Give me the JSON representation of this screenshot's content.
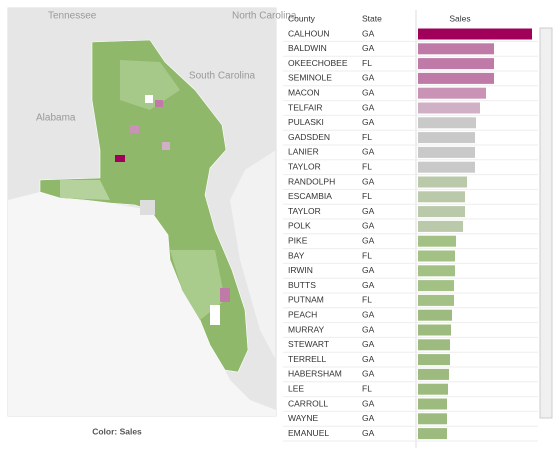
{
  "map": {
    "labels": [
      "Tennessee",
      "North Carolina",
      "South Carolina",
      "Alabama"
    ],
    "legend_caption": "Color: Sales"
  },
  "chart_data": {
    "type": "bar",
    "orientation": "horizontal",
    "columns": [
      "County",
      "State",
      "Sales"
    ],
    "categories": [
      "CALHOUN",
      "BALDWIN",
      "OKEECHOBEE",
      "SEMINOLE",
      "MACON",
      "TELFAIR",
      "PULASKI",
      "GADSDEN",
      "LANIER",
      "TAYLOR",
      "RANDOLPH",
      "ESCAMBIA",
      "TAYLOR",
      "POLK",
      "PIKE",
      "BAY",
      "IRWIN",
      "BUTTS",
      "PUTNAM",
      "PEACH",
      "MURRAY",
      "STEWART",
      "TERRELL",
      "HABERSHAM",
      "LEE",
      "CARROLL",
      "WAYNE",
      "EMANUEL"
    ],
    "states": [
      "GA",
      "GA",
      "FL",
      "GA",
      "GA",
      "GA",
      "GA",
      "FL",
      "GA",
      "FL",
      "GA",
      "FL",
      "GA",
      "GA",
      "GA",
      "FL",
      "GA",
      "GA",
      "FL",
      "GA",
      "GA",
      "GA",
      "GA",
      "GA",
      "FL",
      "GA",
      "GA",
      "GA"
    ],
    "values": [
      114,
      76,
      76,
      76,
      68,
      62,
      58,
      57,
      57,
      57,
      49,
      47,
      47,
      45,
      38,
      37,
      37,
      36,
      36,
      34,
      33,
      32,
      32,
      31,
      30,
      29,
      29,
      29
    ],
    "colors": [
      "#a0005a",
      "#c07aa8",
      "#c07aa8",
      "#c07aa8",
      "#c993b6",
      "#cfb0c4",
      "#c9c9c9",
      "#c9c9c9",
      "#c9c9c9",
      "#c9c9c9",
      "#b9c9a9",
      "#b9c9a9",
      "#b9c9a9",
      "#b9c9a9",
      "#a3c184",
      "#a3c184",
      "#a3c184",
      "#a3c184",
      "#a3c184",
      "#9dbb7e",
      "#9dbb7e",
      "#9dbb7e",
      "#9dbb7e",
      "#9dbb7e",
      "#9dbb7e",
      "#9dbb7e",
      "#9dbb7e",
      "#9dbb7e"
    ]
  }
}
